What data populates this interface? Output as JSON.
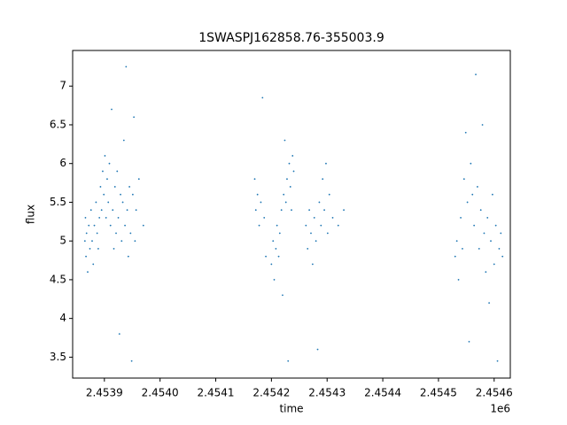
{
  "chart_data": {
    "type": "scatter",
    "title": "1SWASPJ162858.76-355003.9",
    "xlabel": "time",
    "ylabel": "flux",
    "x_offset_label": "1e6",
    "color": "#1f77b4",
    "xlim": [
      2453843,
      2454629
    ],
    "ylim": [
      3.23,
      7.46
    ],
    "xticks": [
      {
        "value": 2453900,
        "label": "2.4539"
      },
      {
        "value": 2454000,
        "label": "2.4540"
      },
      {
        "value": 2454100,
        "label": "2.4541"
      },
      {
        "value": 2454200,
        "label": "2.4542"
      },
      {
        "value": 2454300,
        "label": "2.4543"
      },
      {
        "value": 2454400,
        "label": "2.4544"
      },
      {
        "value": 2454500,
        "label": "2.4545"
      },
      {
        "value": 2454600,
        "label": "2.4546"
      }
    ],
    "yticks": [
      3.5,
      4.0,
      4.5,
      5.0,
      5.5,
      6.0,
      6.5,
      7.0
    ],
    "x": [
      2453865,
      2453866,
      2453867,
      2453868,
      2453870,
      2453872,
      2453874,
      2453876,
      2453878,
      2453880,
      2453882,
      2453885,
      2453887,
      2453889,
      2453891,
      2453893,
      2453895,
      2453897,
      2453899,
      2453901,
      2453903,
      2453905,
      2453907,
      2453909,
      2453911,
      2453913,
      2453915,
      2453917,
      2453919,
      2453921,
      2453923,
      2453925,
      2453927,
      2453929,
      2453931,
      2453933,
      2453935,
      2453937,
      2453939,
      2453941,
      2453943,
      2453945,
      2453947,
      2453949,
      2453951,
      2453953,
      2453955,
      2453957,
      2453962,
      2453970,
      2454170,
      2454172,
      2454175,
      2454178,
      2454181,
      2454184,
      2454187,
      2454190,
      2454200,
      2454203,
      2454205,
      2454208,
      2454210,
      2454213,
      2454215,
      2454218,
      2454220,
      2454222,
      2454224,
      2454226,
      2454228,
      2454230,
      2454232,
      2454234,
      2454236,
      2454238,
      2454240,
      2454262,
      2454265,
      2454268,
      2454271,
      2454274,
      2454277,
      2454280,
      2454283,
      2454286,
      2454289,
      2454292,
      2454295,
      2454298,
      2454301,
      2454304,
      2454310,
      2454320,
      2454330,
      2454530,
      2454533,
      2454536,
      2454540,
      2454543,
      2454546,
      2454549,
      2454552,
      2454555,
      2454558,
      2454561,
      2454564,
      2454567,
      2454570,
      2454573,
      2454576,
      2454579,
      2454582,
      2454585,
      2454588,
      2454591,
      2454594,
      2454597,
      2454600,
      2454603,
      2454606,
      2454609,
      2454612,
      2454615
    ],
    "values": [
      5.0,
      5.3,
      4.8,
      5.1,
      4.6,
      5.2,
      4.9,
      5.4,
      5.0,
      4.7,
      5.2,
      5.5,
      5.1,
      4.9,
      5.3,
      5.7,
      5.4,
      5.9,
      5.6,
      6.1,
      5.3,
      5.8,
      5.5,
      6.0,
      5.2,
      6.7,
      5.4,
      4.9,
      5.7,
      5.1,
      5.9,
      5.3,
      3.8,
      5.6,
      5.0,
      5.5,
      6.3,
      5.2,
      7.25,
      5.4,
      4.8,
      5.7,
      5.1,
      3.45,
      5.6,
      6.6,
      5.0,
      5.4,
      5.8,
      5.2,
      5.8,
      5.4,
      5.6,
      5.2,
      5.5,
      6.85,
      5.3,
      4.8,
      4.7,
      5.0,
      4.5,
      4.9,
      5.2,
      4.8,
      5.1,
      5.4,
      4.3,
      5.6,
      6.3,
      5.5,
      5.8,
      3.45,
      6.0,
      5.7,
      5.4,
      6.1,
      5.9,
      5.2,
      4.9,
      5.4,
      5.1,
      4.7,
      5.3,
      5.0,
      3.6,
      5.5,
      5.2,
      5.8,
      5.4,
      6.0,
      5.1,
      5.6,
      5.3,
      5.2,
      5.4,
      4.8,
      5.0,
      4.5,
      5.3,
      4.9,
      5.8,
      6.4,
      5.5,
      3.7,
      6.0,
      5.6,
      5.2,
      7.15,
      5.7,
      4.9,
      5.4,
      6.5,
      5.1,
      4.6,
      5.3,
      4.2,
      5.0,
      5.6,
      4.7,
      5.2,
      3.45,
      4.9,
      5.1,
      4.8
    ]
  }
}
